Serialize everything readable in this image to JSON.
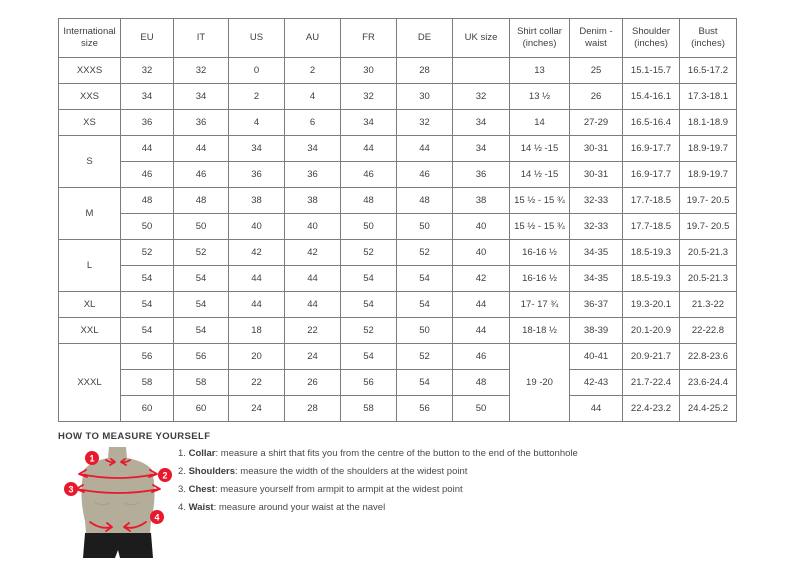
{
  "table": {
    "headers": [
      "International size",
      "EU",
      "IT",
      "US",
      "AU",
      "FR",
      "DE",
      "UK size",
      "Shirt collar (inches)",
      "Denim - waist",
      "Shoulder (inches)",
      "Bust (inches)"
    ],
    "groups": [
      {
        "label": "XXXS",
        "rows": [
          [
            "32",
            "32",
            "0",
            "2",
            "30",
            "28",
            "",
            "13",
            "25",
            "15.1-15.7",
            "16.5-17.2"
          ]
        ]
      },
      {
        "label": "XXS",
        "rows": [
          [
            "34",
            "34",
            "2",
            "4",
            "32",
            "30",
            "32",
            "13 ½",
            "26",
            "15.4-16.1",
            "17.3-18.1"
          ]
        ]
      },
      {
        "label": "XS",
        "rows": [
          [
            "36",
            "36",
            "4",
            "6",
            "34",
            "32",
            "34",
            "14",
            "27-29",
            "16.5-16.4",
            "18.1-18.9"
          ]
        ]
      },
      {
        "label": "S",
        "rows": [
          [
            "44",
            "44",
            "34",
            "34",
            "44",
            "44",
            "34",
            "14 ½ -15",
            "30-31",
            "16.9-17.7",
            "18.9-19.7"
          ],
          [
            "46",
            "46",
            "36",
            "36",
            "46",
            "46",
            "36",
            "14 ½ -15",
            "30-31",
            "16.9-17.7",
            "18.9-19.7"
          ]
        ]
      },
      {
        "label": "M",
        "rows": [
          [
            "48",
            "48",
            "38",
            "38",
            "48",
            "48",
            "38",
            "15 ½ - 15 ¾",
            "32-33",
            "17.7-18.5",
            "19.7- 20.5"
          ],
          [
            "50",
            "50",
            "40",
            "40",
            "50",
            "50",
            "40",
            "15 ½ - 15 ¾",
            "32-33",
            "17.7-18.5",
            "19.7- 20.5"
          ]
        ]
      },
      {
        "label": "L",
        "rows": [
          [
            "52",
            "52",
            "42",
            "42",
            "52",
            "52",
            "40",
            "16-16 ½",
            "34-35",
            "18.5-19.3",
            "20.5-21.3"
          ],
          [
            "54",
            "54",
            "44",
            "44",
            "54",
            "54",
            "42",
            "16-16 ½",
            "34-35",
            "18.5-19.3",
            "20.5-21.3"
          ]
        ]
      },
      {
        "label": "XL",
        "rows": [
          [
            "54",
            "54",
            "44",
            "44",
            "54",
            "54",
            "44",
            "17- 17 ¾",
            "36-37",
            "19.3-20.1",
            "21.3-22"
          ]
        ]
      },
      {
        "label": "XXL",
        "rows": [
          [
            "54",
            "54",
            "18",
            "22",
            "52",
            "50",
            "44",
            "18-18 ½",
            "38-39",
            "20.1-20.9",
            "22-22.8"
          ]
        ]
      },
      {
        "label": "XXXL",
        "collar_merged": "19 -20",
        "rows": [
          [
            "56",
            "56",
            "20",
            "24",
            "54",
            "52",
            "46",
            "",
            "40-41",
            "20.9-21.7",
            "22.8-23.6"
          ],
          [
            "58",
            "58",
            "22",
            "26",
            "56",
            "54",
            "48",
            "",
            "42-43",
            "21.7-22.4",
            "23.6-24.4"
          ],
          [
            "60",
            "60",
            "24",
            "28",
            "58",
            "56",
            "50",
            "",
            "44",
            "22.4-23.2",
            "24.4-25.2"
          ]
        ]
      }
    ]
  },
  "measure": {
    "heading": "HOW TO MEASURE YOURSELF",
    "markers": [
      "1",
      "2",
      "3",
      "4"
    ],
    "steps": [
      {
        "num": "1.",
        "label": "Collar",
        "text": ": measure a shirt that fits you from the centre of the button to the end of the buttonhole"
      },
      {
        "num": "2.",
        "label": "Shoulders",
        "text": ": measure the width of the shoulders at the widest point"
      },
      {
        "num": "3.",
        "label": "Chest",
        "text": ": measure yourself from armpit to armpit at the widest point"
      },
      {
        "num": "4.",
        "label": "Waist",
        "text": ": measure around your waist at the navel"
      }
    ]
  },
  "colors": {
    "accent_red": "#e8192c",
    "torso_fill": "#b3ad9a",
    "torso_shade": "#a49e8a",
    "shorts_fill": "#1c1c1c",
    "border": "#7c7c7c"
  }
}
